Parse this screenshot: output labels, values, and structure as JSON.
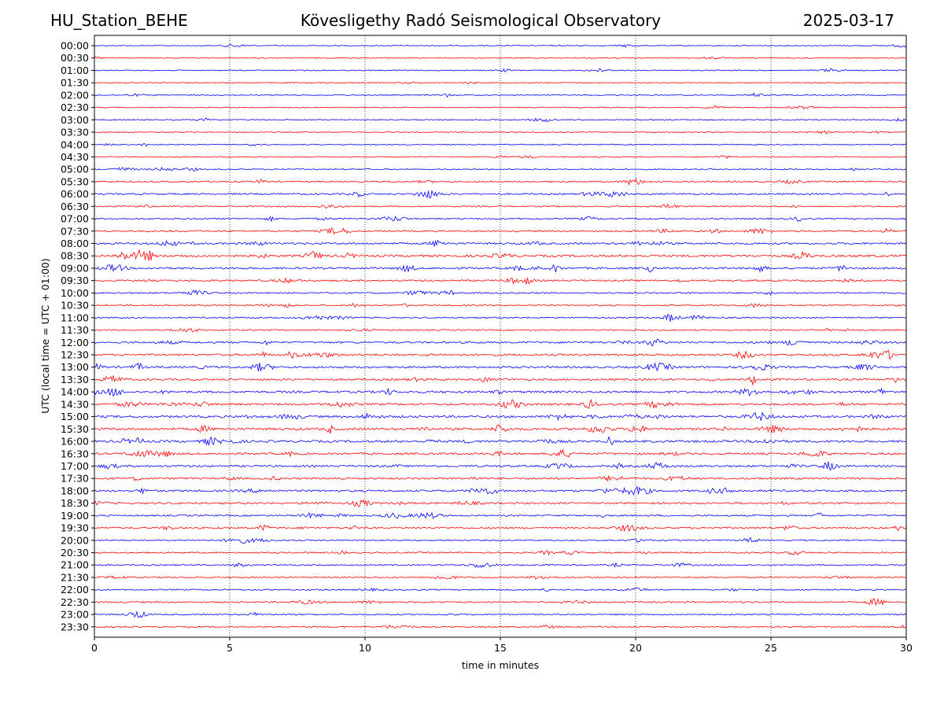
{
  "header": {
    "station": "HU_Station_BEHE",
    "observatory": "Kövesligethy Radó Seismological Observatory",
    "date": "2025-03-17"
  },
  "chart_data": {
    "type": "line",
    "title": "Kövesligethy Radó Seismological Observatory",
    "xlabel": "time in minutes",
    "ylabel": "UTC (local time = UTC + 01:00)",
    "xlim": [
      0,
      30
    ],
    "x_ticks": [
      0,
      5,
      10,
      15,
      20,
      25,
      30
    ],
    "x_tick_labels": [
      "0",
      "5",
      "10",
      "15",
      "20",
      "25",
      "30"
    ],
    "grid": "vertical dotted at each x tick",
    "trace_colors": [
      "#0000ff",
      "#ff0000"
    ],
    "traces": [
      {
        "label": "00:00",
        "color": "#0000ff",
        "activity": 0.25
      },
      {
        "label": "00:30",
        "color": "#ff0000",
        "activity": 0.2
      },
      {
        "label": "01:00",
        "color": "#0000ff",
        "activity": 0.25
      },
      {
        "label": "01:30",
        "color": "#ff0000",
        "activity": 0.2
      },
      {
        "label": "02:00",
        "color": "#0000ff",
        "activity": 0.3
      },
      {
        "label": "02:30",
        "color": "#ff0000",
        "activity": 0.2
      },
      {
        "label": "03:00",
        "color": "#0000ff",
        "activity": 0.3
      },
      {
        "label": "03:30",
        "color": "#ff0000",
        "activity": 0.2
      },
      {
        "label": "04:00",
        "color": "#0000ff",
        "activity": 0.25
      },
      {
        "label": "04:30",
        "color": "#ff0000",
        "activity": 0.25
      },
      {
        "label": "05:00",
        "color": "#0000ff",
        "activity": 0.35
      },
      {
        "label": "05:30",
        "color": "#ff0000",
        "activity": 0.5
      },
      {
        "label": "06:00",
        "color": "#0000ff",
        "activity": 0.6
      },
      {
        "label": "06:30",
        "color": "#ff0000",
        "activity": 0.4
      },
      {
        "label": "07:00",
        "color": "#0000ff",
        "activity": 0.5
      },
      {
        "label": "07:30",
        "color": "#ff0000",
        "activity": 0.55
      },
      {
        "label": "08:00",
        "color": "#0000ff",
        "activity": 0.75
      },
      {
        "label": "08:30",
        "color": "#ff0000",
        "activity": 0.9
      },
      {
        "label": "09:00",
        "color": "#0000ff",
        "activity": 0.75
      },
      {
        "label": "09:30",
        "color": "#ff0000",
        "activity": 0.6
      },
      {
        "label": "10:00",
        "color": "#0000ff",
        "activity": 0.5
      },
      {
        "label": "10:30",
        "color": "#ff0000",
        "activity": 0.45
      },
      {
        "label": "11:00",
        "color": "#0000ff",
        "activity": 0.45
      },
      {
        "label": "11:30",
        "color": "#ff0000",
        "activity": 0.4
      },
      {
        "label": "12:00",
        "color": "#0000ff",
        "activity": 0.7
      },
      {
        "label": "12:30",
        "color": "#ff0000",
        "activity": 0.75
      },
      {
        "label": "13:00",
        "color": "#0000ff",
        "activity": 0.8
      },
      {
        "label": "13:30",
        "color": "#ff0000",
        "activity": 0.75
      },
      {
        "label": "14:00",
        "color": "#0000ff",
        "activity": 0.9
      },
      {
        "label": "14:30",
        "color": "#ff0000",
        "activity": 0.85
      },
      {
        "label": "15:00",
        "color": "#0000ff",
        "activity": 0.95
      },
      {
        "label": "15:30",
        "color": "#ff0000",
        "activity": 1.0
      },
      {
        "label": "16:00",
        "color": "#0000ff",
        "activity": 0.95
      },
      {
        "label": "16:30",
        "color": "#ff0000",
        "activity": 0.8
      },
      {
        "label": "17:00",
        "color": "#0000ff",
        "activity": 0.75
      },
      {
        "label": "17:30",
        "color": "#ff0000",
        "activity": 0.7
      },
      {
        "label": "18:00",
        "color": "#0000ff",
        "activity": 0.8
      },
      {
        "label": "18:30",
        "color": "#ff0000",
        "activity": 0.65
      },
      {
        "label": "19:00",
        "color": "#0000ff",
        "activity": 0.55
      },
      {
        "label": "19:30",
        "color": "#ff0000",
        "activity": 0.65
      },
      {
        "label": "20:00",
        "color": "#0000ff",
        "activity": 0.45
      },
      {
        "label": "20:30",
        "color": "#ff0000",
        "activity": 0.45
      },
      {
        "label": "21:00",
        "color": "#0000ff",
        "activity": 0.45
      },
      {
        "label": "21:30",
        "color": "#ff0000",
        "activity": 0.4
      },
      {
        "label": "22:00",
        "color": "#0000ff",
        "activity": 0.4
      },
      {
        "label": "22:30",
        "color": "#ff0000",
        "activity": 0.5
      },
      {
        "label": "23:00",
        "color": "#0000ff",
        "activity": 0.4
      },
      {
        "label": "23:30",
        "color": "#ff0000",
        "activity": 0.4
      }
    ]
  }
}
